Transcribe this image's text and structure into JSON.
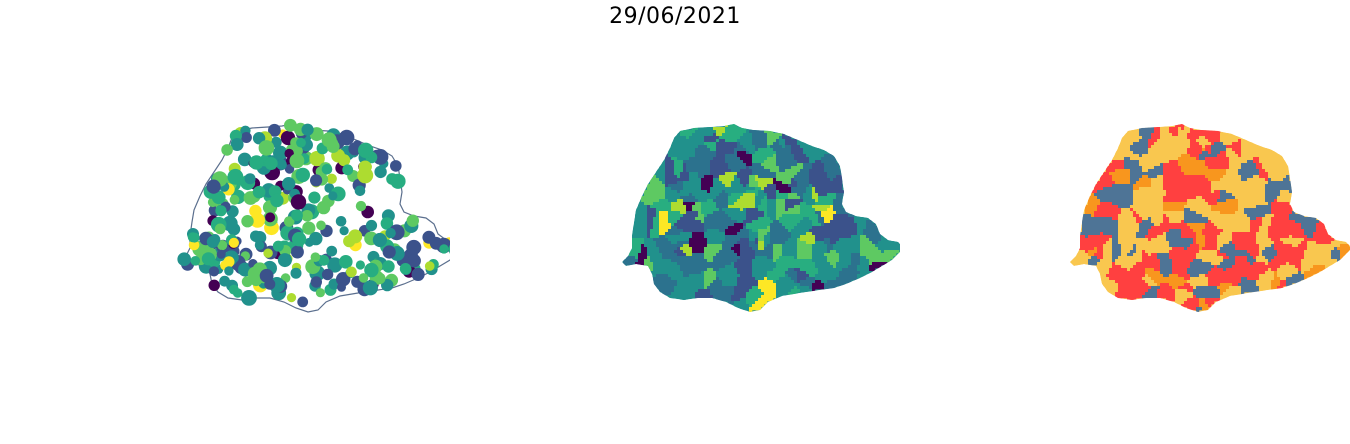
{
  "figure": {
    "title": "29/06/2021"
  },
  "maps": [
    {
      "key": "dots",
      "style": "proportional-symbols",
      "outline_color": "#5b6f8e",
      "palette": [
        "#440154",
        "#3b528b",
        "#21918c",
        "#27ad81",
        "#5ec962",
        "#addc30",
        "#fde725"
      ]
    },
    {
      "key": "choro",
      "style": "choropleth",
      "palette": [
        "#440154",
        "#3b528b",
        "#2c728e",
        "#21918c",
        "#28ae80",
        "#5ec962",
        "#addc30",
        "#fde725"
      ]
    },
    {
      "key": "class",
      "style": "categorical",
      "palette": [
        "#ff4040",
        "#f9c74f",
        "#4e7496",
        "#f8961e"
      ]
    }
  ]
}
